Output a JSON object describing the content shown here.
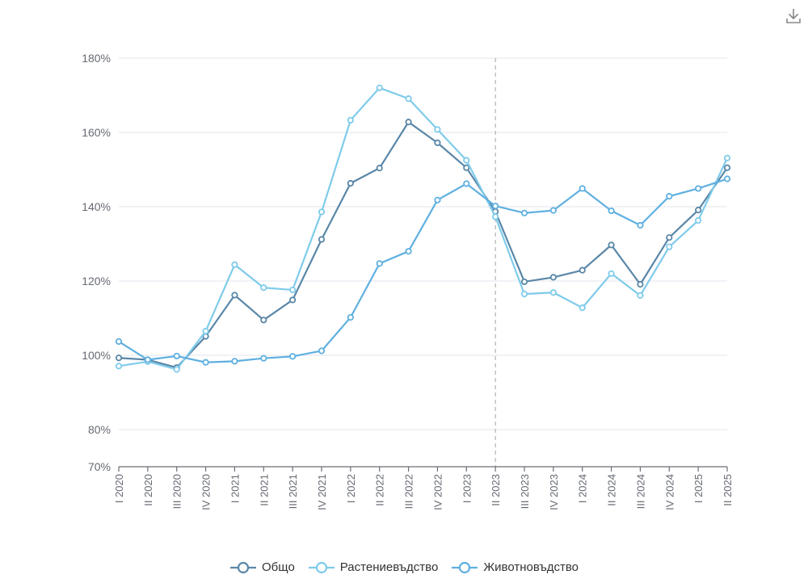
{
  "chart_data": {
    "type": "line",
    "categories": [
      "I 2020",
      "II 2020",
      "III 2020",
      "IV 2020",
      "I 2021",
      "II 2021",
      "III 2021",
      "IV 2021",
      "I 2022",
      "II 2022",
      "III 2022",
      "IV 2022",
      "I 2023",
      "II 2023",
      "III 2023",
      "IV 2023",
      "I 2024",
      "II 2024",
      "III 2024",
      "IV 2024",
      "I 2025",
      "II 2025"
    ],
    "y_tick_labels": [
      "70%",
      "80%",
      "100%",
      "120%",
      "140%",
      "160%",
      "180%"
    ],
    "y_ticks": [
      70,
      80,
      100,
      120,
      140,
      160,
      180
    ],
    "ylim": [
      70,
      180
    ],
    "grid": true,
    "legend_position": "bottom-center",
    "reference_line_category": "II 2023",
    "series": [
      {
        "name": "Общо",
        "color": "#5a87a8",
        "values": [
          99.3,
          98.8,
          96.7,
          105.1,
          116.2,
          109.5,
          114.9,
          131.2,
          146.3,
          150.4,
          162.8,
          157.2,
          150.5,
          138.7,
          119.8,
          121.0,
          122.9,
          129.7,
          119.1,
          131.7,
          139.1,
          150.5
        ]
      },
      {
        "name": "Растениевъдство",
        "color": "#7fcbea",
        "values": [
          97.1,
          98.3,
          96.2,
          106.5,
          124.4,
          118.2,
          117.6,
          138.6,
          163.3,
          172.0,
          169.1,
          160.8,
          152.5,
          137.3,
          116.5,
          116.9,
          112.8,
          122.0,
          116.1,
          129.2,
          136.3,
          153.1
        ]
      },
      {
        "name": "Животновъдство",
        "color": "#5fb0e0",
        "values": [
          103.7,
          98.8,
          99.8,
          98.1,
          98.4,
          99.2,
          99.7,
          101.2,
          110.2,
          124.7,
          128.0,
          141.8,
          146.2,
          140.2,
          138.3,
          139.0,
          144.9,
          138.9,
          135.0,
          142.8,
          144.9,
          147.5
        ]
      }
    ]
  },
  "toolbar": {
    "download_icon": "download-icon"
  }
}
